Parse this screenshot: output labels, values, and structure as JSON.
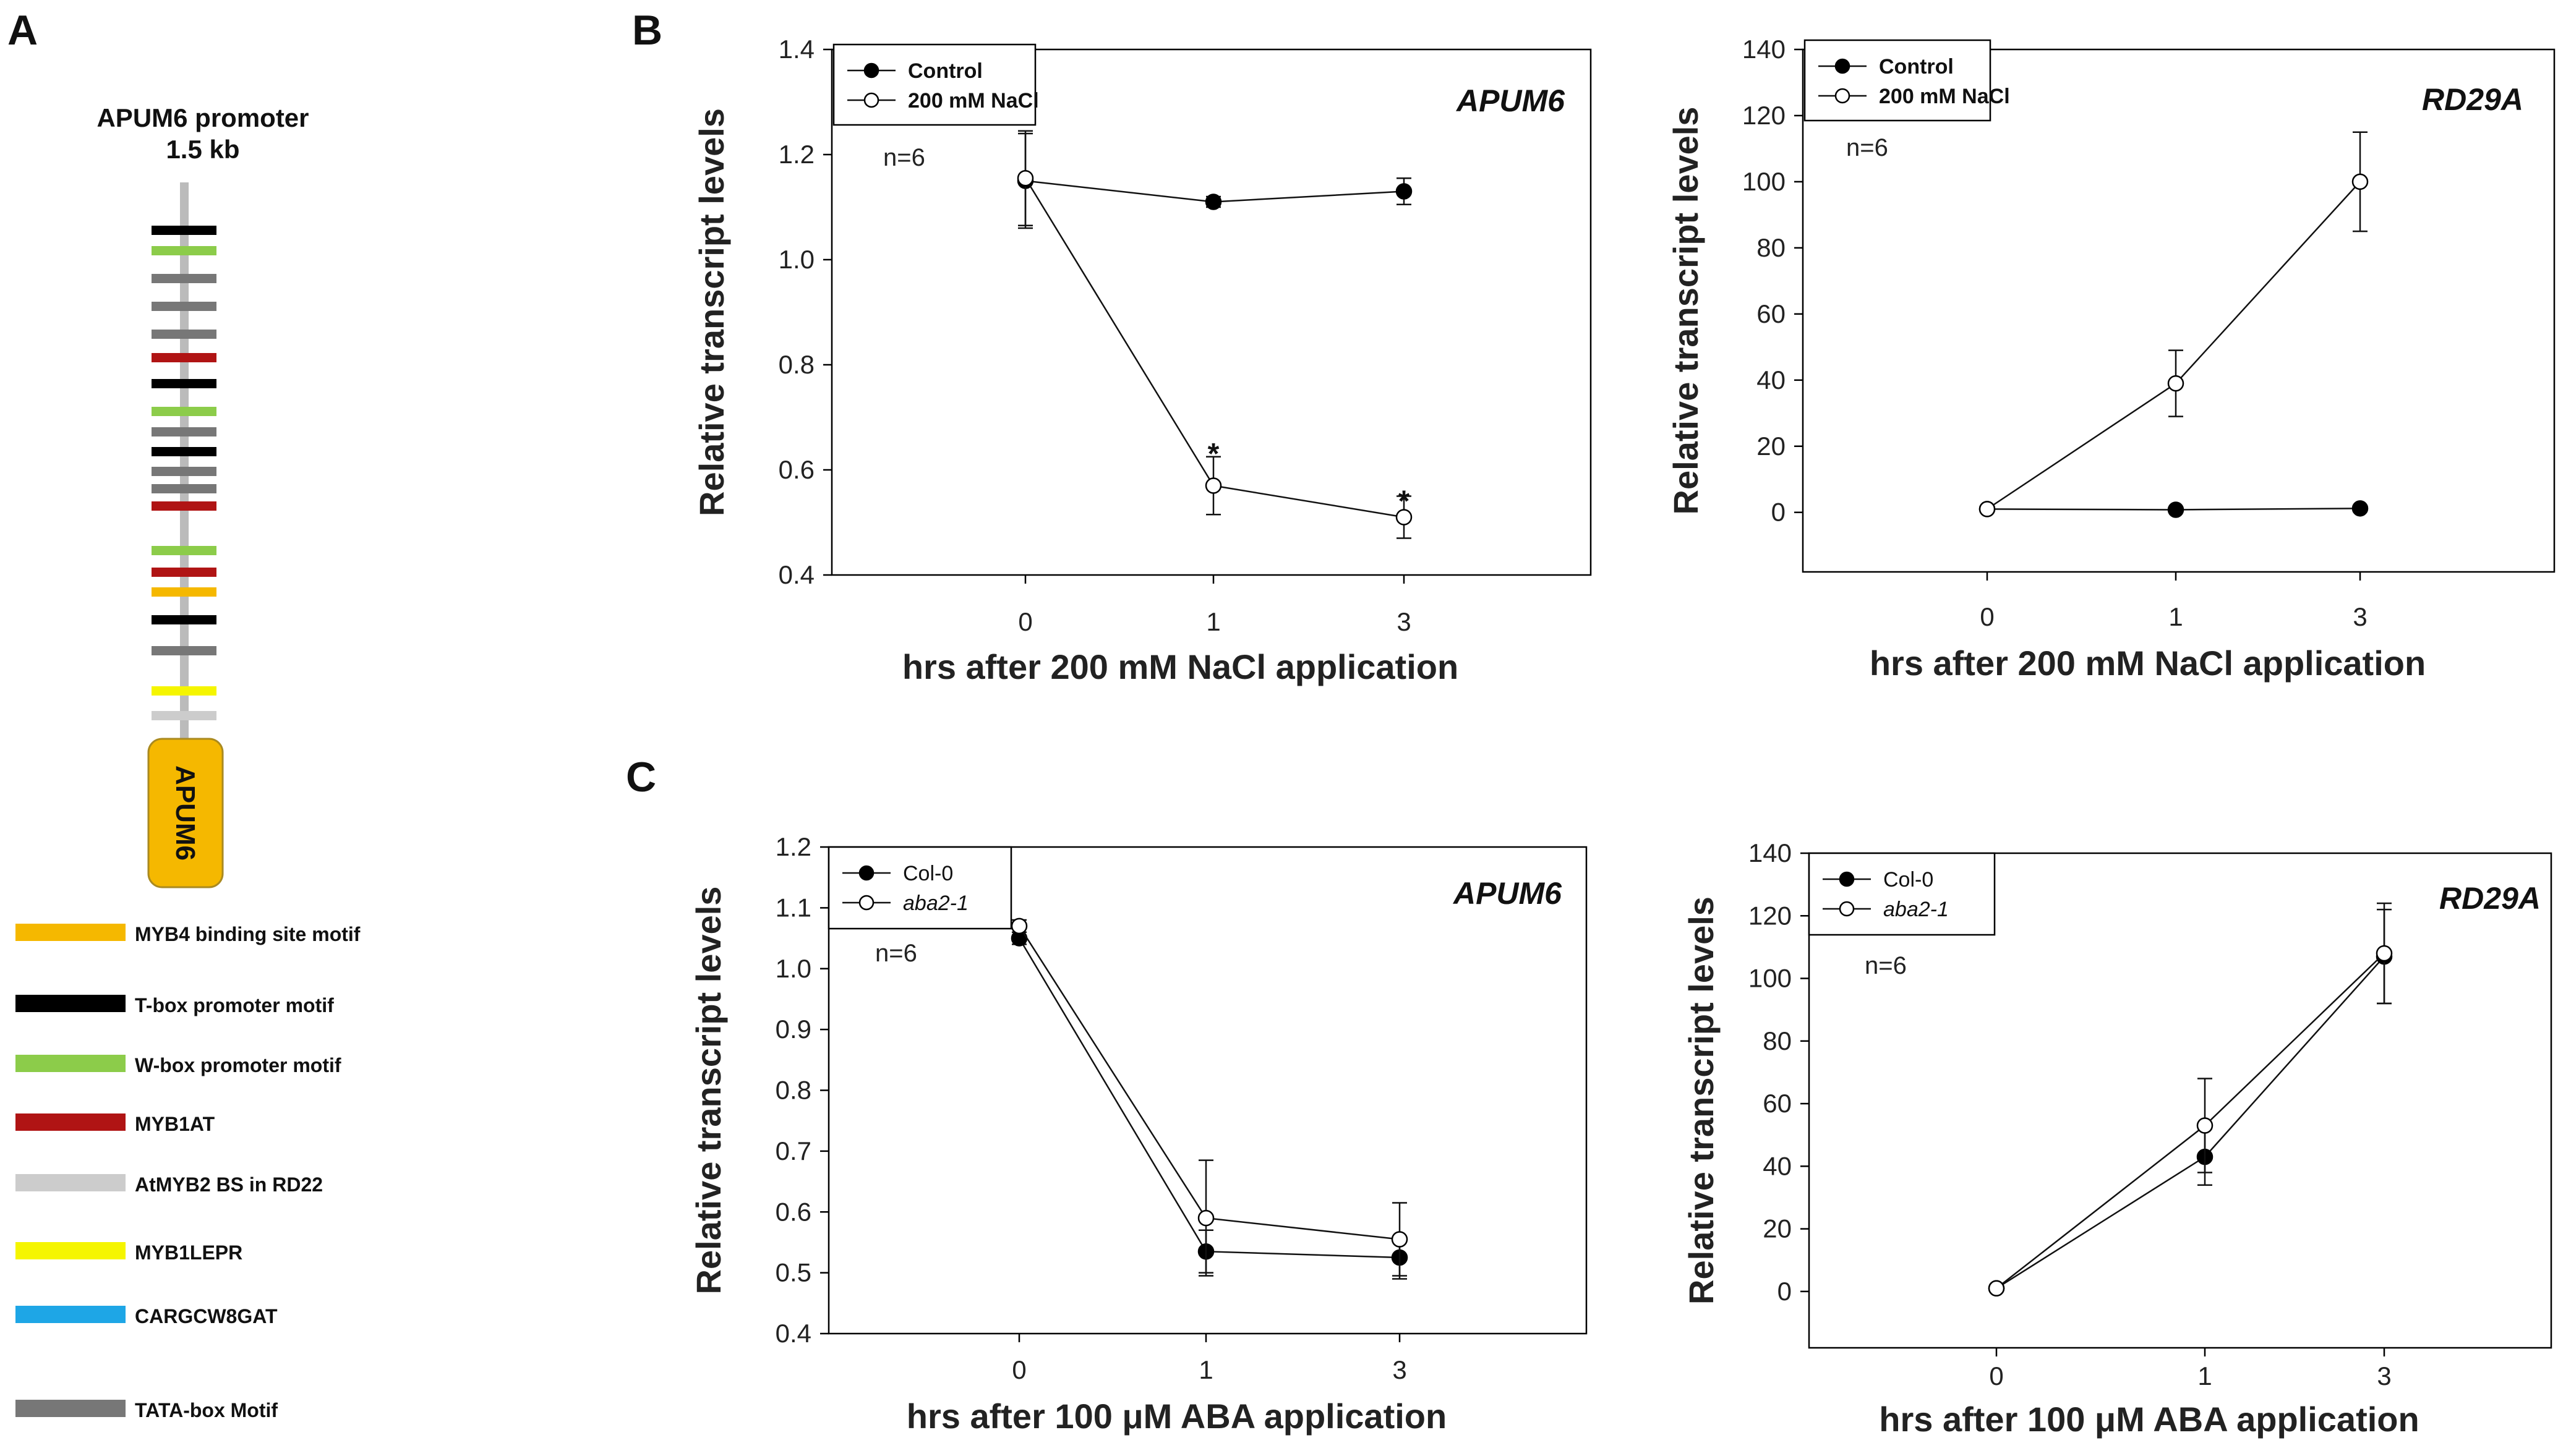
{
  "panel_a": {
    "letter": "A",
    "title": "APUM6 promoter",
    "subtitle": "1.5 kb",
    "gene_label": "APUM6",
    "bars": [
      "black",
      "green",
      "gray",
      "gray",
      "gray",
      "red",
      "black",
      "green",
      "gray",
      "black",
      "gray",
      "gray",
      "red",
      "green",
      "red",
      "orange",
      "black",
      "gray",
      "yellow",
      "lightgray"
    ],
    "legend": [
      {
        "label": "MYB4 binding site motif",
        "color": "#f5b800"
      },
      {
        "label": "T-box promoter motif",
        "color": "#000000"
      },
      {
        "label": "W-box promoter motif",
        "color": "#8ccc4a"
      },
      {
        "label": "MYB1AT",
        "color": "#b01414"
      },
      {
        "label": "AtMYB2 BS in RD22",
        "color": "#cccccc"
      },
      {
        "label": "MYB1LEPR",
        "color": "#f5f500"
      },
      {
        "label": "CARGCW8GAT",
        "color": "#1ea6e6"
      },
      {
        "label": "TATA-box Motif",
        "color": "#777777"
      }
    ]
  },
  "panel_b": {
    "letter": "B"
  },
  "panel_c": {
    "letter": "C"
  },
  "chart_data": [
    {
      "id": "b1",
      "type": "line",
      "title": "APUM6",
      "n_label": "n=6",
      "xlabel": "hrs after 200 mM NaCl application",
      "ylabel": "Relative transcript levels",
      "categories": [
        "0",
        "1",
        "3"
      ],
      "ylim": [
        0.4,
        1.4
      ],
      "yticks": [
        "0.4",
        "0.6",
        "0.8",
        "1.0",
        "1.2",
        "1.4"
      ],
      "series": [
        {
          "name": "Control",
          "marker": "filled",
          "values": [
            1.15,
            1.11,
            1.13
          ],
          "errors": [
            0.09,
            0.01,
            0.025
          ]
        },
        {
          "name": "200 mM NaCl",
          "marker": "open",
          "values": [
            1.155,
            0.57,
            0.51
          ],
          "errors": [
            0.09,
            0.055,
            0.04
          ]
        }
      ],
      "annotations": [
        {
          "text": "*",
          "x": "1",
          "y": 0.64
        },
        {
          "text": "*",
          "x": "3",
          "y": 0.55
        }
      ]
    },
    {
      "id": "b2",
      "type": "line",
      "title": "RD29A",
      "n_label": "n=6",
      "xlabel": "hrs after 200 mM NaCl application",
      "ylabel": "Relative transcript levels",
      "categories": [
        "0",
        "1",
        "3"
      ],
      "ylim": [
        -18,
        140
      ],
      "yticks": [
        "0",
        "20",
        "40",
        "60",
        "80",
        "100",
        "120",
        "140"
      ],
      "series": [
        {
          "name": "Control",
          "marker": "filled",
          "values": [
            1,
            0.8,
            1.2
          ],
          "errors": [
            0,
            0,
            0
          ]
        },
        {
          "name": "200 mM NaCl",
          "marker": "open",
          "values": [
            1,
            39,
            100
          ],
          "errors": [
            0,
            10,
            15
          ]
        }
      ],
      "annotations": []
    },
    {
      "id": "c1",
      "type": "line",
      "title": "APUM6",
      "n_label": "n=6",
      "xlabel": "hrs after 100 μM ABA application",
      "ylabel": "Relative transcript levels",
      "categories": [
        "0",
        "1",
        "3"
      ],
      "ylim": [
        0.4,
        1.2
      ],
      "yticks": [
        "0.4",
        "0.5",
        "0.6",
        "0.7",
        "0.8",
        "0.9",
        "1.0",
        "1.1",
        "1.2"
      ],
      "series": [
        {
          "name": "Col-0",
          "marker": "filled",
          "values": [
            1.05,
            0.535,
            0.525
          ],
          "errors": [
            0.01,
            0.035,
            0.035
          ]
        },
        {
          "name": "aba2-1",
          "marker": "open",
          "values": [
            1.07,
            0.59,
            0.555
          ],
          "errors": [
            0.01,
            0.095,
            0.06
          ]
        }
      ],
      "annotations": []
    },
    {
      "id": "c2",
      "type": "line",
      "title": "RD29A",
      "n_label": "n=6",
      "xlabel": "hrs after 100 μM ABA application",
      "ylabel": "Relative transcript levels",
      "categories": [
        "0",
        "1",
        "3"
      ],
      "ylim": [
        -18,
        140
      ],
      "yticks": [
        "0",
        "20",
        "40",
        "60",
        "80",
        "100",
        "120",
        "140"
      ],
      "series": [
        {
          "name": "Col-0",
          "marker": "filled",
          "values": [
            1,
            43,
            107
          ],
          "errors": [
            0,
            9,
            15
          ]
        },
        {
          "name": "aba2-1",
          "marker": "open",
          "values": [
            1,
            53,
            108
          ],
          "errors": [
            0,
            15,
            16
          ]
        }
      ],
      "annotations": []
    }
  ]
}
